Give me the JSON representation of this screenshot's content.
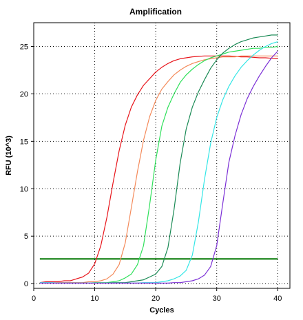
{
  "chart_data": {
    "type": "line",
    "title": "Amplification",
    "xlabel": "Cycles",
    "ylabel": "RFU (10^3)",
    "xlim": [
      0,
      42
    ],
    "ylim": [
      -0.5,
      27.5
    ],
    "x_ticks": [
      0,
      10,
      20,
      30,
      40
    ],
    "y_ticks": [
      0,
      5,
      10,
      15,
      20,
      25
    ],
    "grid": true,
    "threshold": {
      "value": 2.6,
      "x_range": [
        1,
        40
      ],
      "color": "#007700"
    },
    "series": [
      {
        "color": "#e8141a",
        "x": [
          1,
          2,
          3,
          4,
          5,
          6,
          7,
          8,
          9,
          10,
          11,
          12,
          13,
          14,
          15,
          16,
          17,
          18,
          19,
          20,
          21,
          22,
          23,
          24,
          25,
          26,
          27,
          28,
          29,
          30,
          31,
          32,
          33,
          34,
          35,
          36,
          37,
          38,
          39,
          40
        ],
        "y": [
          0.1,
          0.2,
          0.2,
          0.2,
          0.3,
          0.3,
          0.5,
          0.7,
          1.1,
          2.1,
          4.0,
          7.0,
          10.6,
          14.0,
          16.7,
          18.6,
          19.9,
          20.9,
          21.6,
          22.3,
          22.8,
          23.2,
          23.5,
          23.7,
          23.8,
          23.9,
          23.95,
          24.0,
          24.0,
          24.0,
          24.0,
          24.0,
          23.95,
          23.9,
          23.9,
          23.85,
          23.8,
          23.8,
          23.75,
          23.7
        ]
      },
      {
        "color": "#f48a5a",
        "x": [
          1,
          2,
          3,
          4,
          5,
          6,
          7,
          8,
          9,
          10,
          11,
          12,
          13,
          14,
          15,
          16,
          17,
          18,
          19,
          20,
          21,
          22,
          23,
          24,
          25,
          26,
          27,
          28,
          29,
          30,
          31,
          32,
          33,
          34,
          35,
          36,
          37,
          38,
          39,
          40
        ],
        "y": [
          0.1,
          0.1,
          0.1,
          0.1,
          0.1,
          0.1,
          0.1,
          0.1,
          0.2,
          0.2,
          0.3,
          0.5,
          1.0,
          2.0,
          4.3,
          8.0,
          11.8,
          15.1,
          17.6,
          19.3,
          20.5,
          21.3,
          22.0,
          22.5,
          22.9,
          23.2,
          23.4,
          23.6,
          23.7,
          23.8,
          23.9,
          23.9,
          23.9,
          24.0,
          24.0,
          24.0,
          24.0,
          24.0,
          24.0,
          24.0
        ]
      },
      {
        "color": "#2ee05a",
        "x": [
          1,
          2,
          3,
          4,
          5,
          6,
          7,
          8,
          9,
          10,
          11,
          12,
          13,
          14,
          15,
          16,
          17,
          18,
          19,
          20,
          21,
          22,
          23,
          24,
          25,
          26,
          27,
          28,
          29,
          30,
          31,
          32,
          33,
          34,
          35,
          36,
          37,
          38,
          39,
          40
        ],
        "y": [
          0.05,
          0.05,
          0.05,
          0.05,
          0.05,
          0.05,
          0.05,
          0.05,
          0.05,
          0.1,
          0.1,
          0.1,
          0.2,
          0.3,
          0.6,
          1.0,
          2.0,
          4.0,
          8.3,
          13.0,
          16.6,
          18.6,
          20.0,
          21.2,
          22.0,
          22.6,
          23.1,
          23.5,
          23.8,
          24.0,
          24.2,
          24.4,
          24.5,
          24.6,
          24.7,
          24.8,
          24.8,
          24.9,
          24.9,
          25.0
        ]
      },
      {
        "color": "#1a8a55",
        "x": [
          1,
          2,
          3,
          4,
          5,
          6,
          7,
          8,
          9,
          10,
          11,
          12,
          13,
          14,
          15,
          16,
          17,
          18,
          19,
          20,
          21,
          22,
          23,
          24,
          25,
          26,
          27,
          28,
          29,
          30,
          31,
          32,
          33,
          34,
          35,
          36,
          37,
          38,
          39,
          40
        ],
        "y": [
          0.05,
          0.05,
          0.05,
          0.05,
          0.05,
          0.05,
          0.05,
          0.05,
          0.05,
          0.05,
          0.05,
          0.05,
          0.1,
          0.1,
          0.1,
          0.2,
          0.3,
          0.4,
          0.7,
          1.0,
          1.8,
          3.8,
          7.8,
          12.7,
          16.3,
          18.6,
          20.2,
          21.5,
          22.7,
          23.6,
          24.3,
          24.8,
          25.2,
          25.5,
          25.7,
          25.9,
          26.0,
          26.1,
          26.2,
          26.2
        ]
      },
      {
        "color": "#33e6e6",
        "x": [
          1,
          2,
          3,
          4,
          5,
          6,
          7,
          8,
          9,
          10,
          11,
          12,
          13,
          14,
          15,
          16,
          17,
          18,
          19,
          20,
          21,
          22,
          23,
          24,
          25,
          26,
          27,
          28,
          29,
          30,
          31,
          32,
          33,
          34,
          35,
          36,
          37,
          38,
          39,
          40
        ],
        "y": [
          0.1,
          0.1,
          0.1,
          0.05,
          0.05,
          0.05,
          0.05,
          0.05,
          0.05,
          0.05,
          0.05,
          0.05,
          0.05,
          0.05,
          0.05,
          0.05,
          0.05,
          0.1,
          0.1,
          0.1,
          0.2,
          0.3,
          0.5,
          0.8,
          1.4,
          3.0,
          6.5,
          11.0,
          14.8,
          17.5,
          19.4,
          20.8,
          21.9,
          22.8,
          23.5,
          24.1,
          24.6,
          25.0,
          25.3,
          25.5
        ]
      },
      {
        "color": "#7b2fd6",
        "x": [
          1,
          2,
          3,
          4,
          5,
          6,
          7,
          8,
          9,
          10,
          11,
          12,
          13,
          14,
          15,
          16,
          17,
          18,
          19,
          20,
          21,
          22,
          23,
          24,
          25,
          26,
          27,
          28,
          29,
          30,
          31,
          32,
          33,
          34,
          35,
          36,
          37,
          38,
          39,
          40
        ],
        "y": [
          0.05,
          0.05,
          0.05,
          0.05,
          0.05,
          0.05,
          0.05,
          0.05,
          0.05,
          0.05,
          0.05,
          0.05,
          0.05,
          0.05,
          0.05,
          0.05,
          0.05,
          0.05,
          0.05,
          0.05,
          0.05,
          0.05,
          0.1,
          0.1,
          0.2,
          0.3,
          0.5,
          0.9,
          1.8,
          4.0,
          8.5,
          12.8,
          15.6,
          17.8,
          19.5,
          20.8,
          21.9,
          22.9,
          23.8,
          24.5
        ]
      }
    ]
  }
}
